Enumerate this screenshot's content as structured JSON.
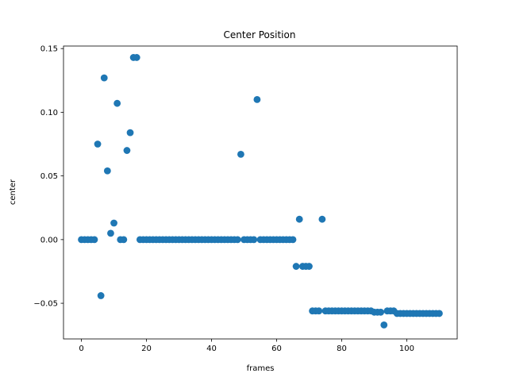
{
  "chart_data": {
    "type": "scatter",
    "title": "Center Position",
    "xlabel": "frames",
    "ylabel": "center",
    "xlim": [
      -5.5,
      115.5
    ],
    "ylim": [
      -0.078,
      0.152
    ],
    "xticks": [
      0,
      20,
      40,
      60,
      80,
      100
    ],
    "yticks": [
      -0.05,
      0.0,
      0.05,
      0.1,
      0.15
    ],
    "ytick_labels": [
      "−0.05",
      "0.00",
      "0.05",
      "0.10",
      "0.15"
    ],
    "grid": false,
    "color": "#1f77b4",
    "x": [
      0,
      1,
      2,
      3,
      4,
      5,
      6,
      7,
      8,
      9,
      10,
      11,
      12,
      13,
      14,
      15,
      16,
      17,
      18,
      19,
      20,
      21,
      22,
      23,
      24,
      25,
      26,
      27,
      28,
      29,
      30,
      31,
      32,
      33,
      34,
      35,
      36,
      37,
      38,
      39,
      40,
      41,
      42,
      43,
      44,
      45,
      46,
      47,
      48,
      49,
      50,
      51,
      52,
      53,
      54,
      55,
      56,
      57,
      58,
      59,
      60,
      61,
      62,
      63,
      64,
      65,
      66,
      67,
      68,
      69,
      70,
      71,
      72,
      73,
      74,
      75,
      76,
      77,
      78,
      79,
      80,
      81,
      82,
      83,
      84,
      85,
      86,
      87,
      88,
      89,
      90,
      91,
      92,
      93,
      94,
      95,
      96,
      97,
      98,
      99,
      100,
      101,
      102,
      103,
      104,
      105,
      106,
      107,
      108,
      109,
      110
    ],
    "y": [
      0,
      0,
      0,
      0,
      0,
      0.075,
      -0.044,
      0.127,
      0.054,
      0.005,
      0.013,
      0.107,
      0,
      0,
      0.07,
      0.084,
      0.143,
      0.143,
      0,
      0,
      0,
      0,
      0,
      0,
      0,
      0,
      0,
      0,
      0,
      0,
      0,
      0,
      0,
      0,
      0,
      0,
      0,
      0,
      0,
      0,
      0,
      0,
      0,
      0,
      0,
      0,
      0,
      0,
      0,
      0.067,
      0,
      0,
      0,
      0,
      0.11,
      0,
      0,
      0,
      0,
      0,
      0,
      0,
      0,
      0,
      0,
      0,
      -0.021,
      0.016,
      -0.021,
      -0.021,
      -0.021,
      -0.056,
      -0.056,
      -0.056,
      0.016,
      -0.056,
      -0.056,
      -0.056,
      -0.056,
      -0.056,
      -0.056,
      -0.056,
      -0.056,
      -0.056,
      -0.056,
      -0.056,
      -0.056,
      -0.056,
      -0.056,
      -0.056,
      -0.057,
      -0.057,
      -0.057,
      -0.067,
      -0.056,
      -0.056,
      -0.056,
      -0.058,
      -0.058,
      -0.058,
      -0.058,
      -0.058,
      -0.058,
      -0.058,
      -0.058,
      -0.058,
      -0.058,
      -0.058,
      -0.058,
      -0.058,
      -0.058
    ]
  }
}
